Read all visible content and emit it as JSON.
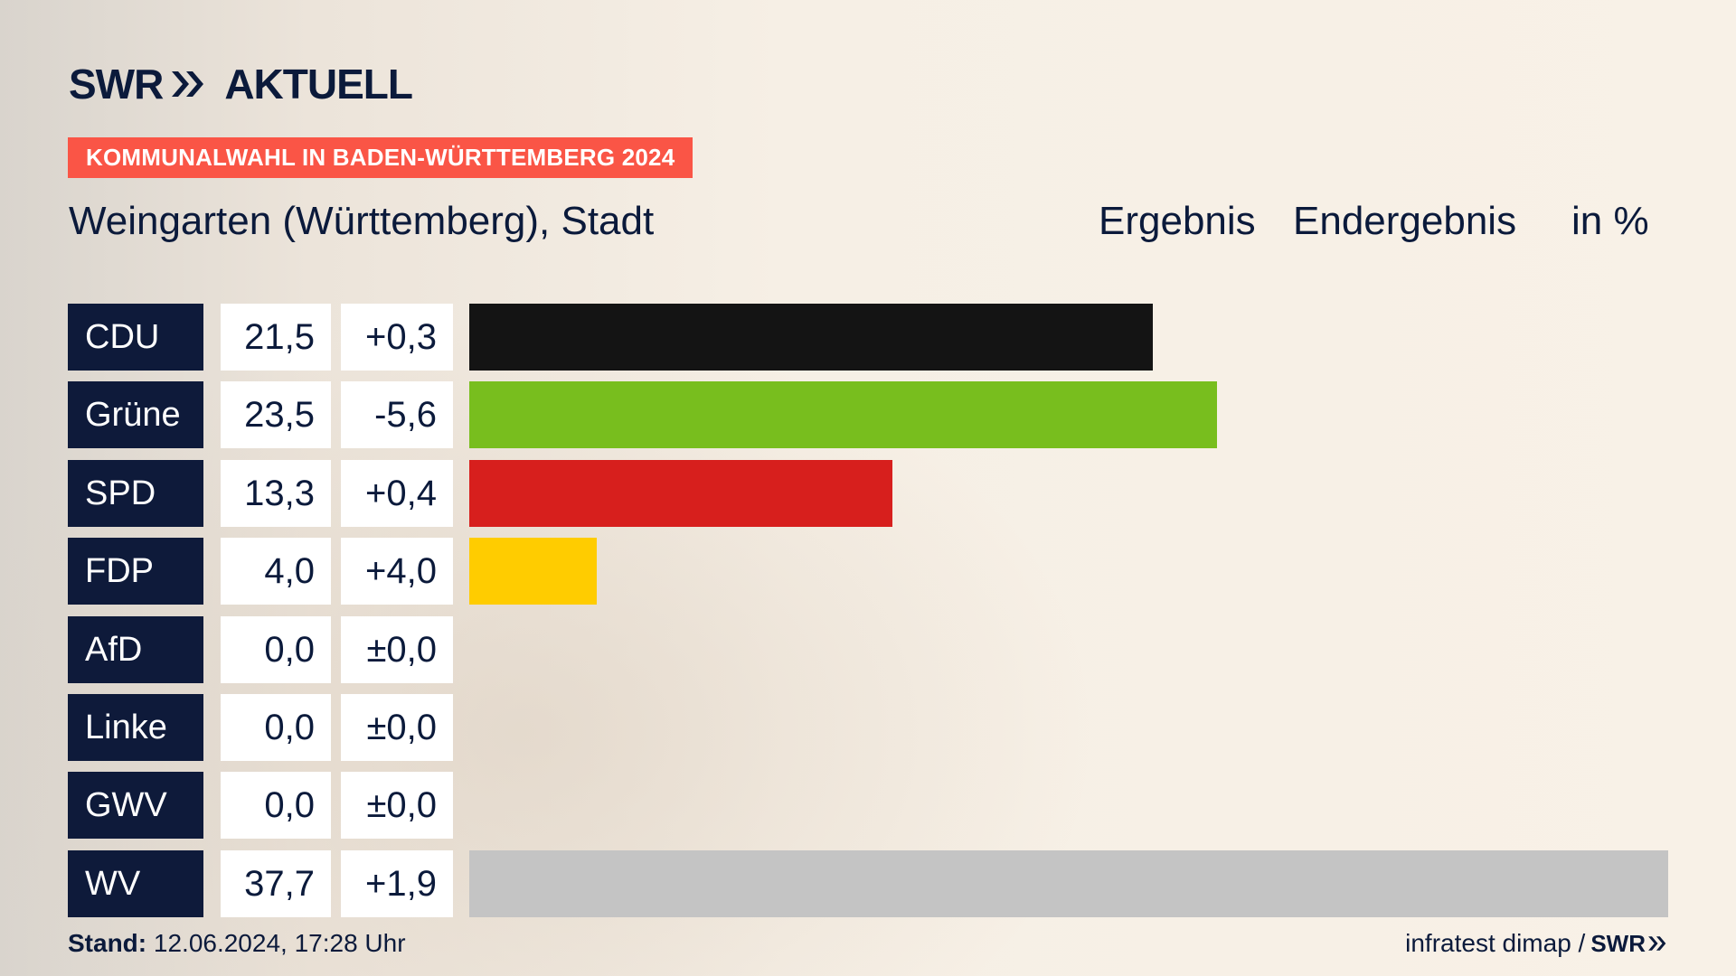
{
  "brand": {
    "swr": "SWR",
    "product": "AKTUELL",
    "navy": "#0b1a3b"
  },
  "banner": {
    "text": "KOMMUNALWAHL IN BADEN-WÜRTTEMBERG 2024",
    "color": "#fa5546"
  },
  "header": {
    "location": "Weingarten (Württemberg), Stadt",
    "ergebnis": "Ergebnis",
    "endergebnis": "Endergebnis",
    "unit": "in %"
  },
  "chart_data": {
    "type": "bar",
    "orientation": "horizontal",
    "xlim": [
      0,
      37.7
    ],
    "categories": [
      "CDU",
      "Grüne",
      "SPD",
      "FDP",
      "AfD",
      "Linke",
      "GWV",
      "WV"
    ],
    "values": [
      21.5,
      23.5,
      13.3,
      4.0,
      0.0,
      0.0,
      0.0,
      37.7
    ],
    "value_labels": [
      "21,5",
      "23,5",
      "13,3",
      "4,0",
      "0,0",
      "0,0",
      "0,0",
      "37,7"
    ],
    "diff_labels": [
      "+0,3",
      "-5,6",
      "+0,4",
      "+4,0",
      "±0,0",
      "±0,0",
      "±0,0",
      "+1,9"
    ],
    "colors": [
      "#141414",
      "#78be1e",
      "#d71f1d",
      "#ffcc00",
      "#009ee0",
      "#be3075",
      "#9a9a9a",
      "#c4c4c4"
    ]
  },
  "footer": {
    "stand_label": "Stand:",
    "stand_value": "12.06.2024, 17:28 Uhr",
    "source": "infratest dimap /",
    "logo": "SWR"
  }
}
